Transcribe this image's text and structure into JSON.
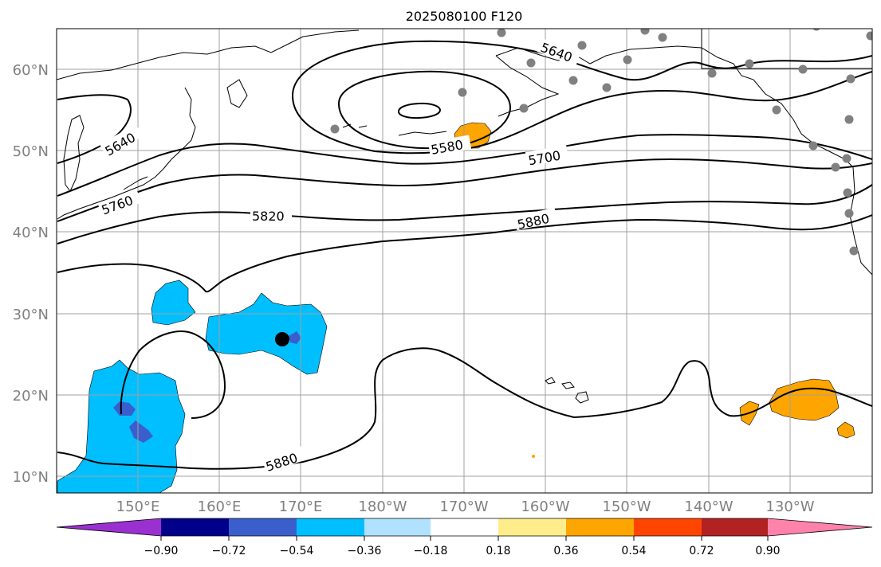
{
  "title": "2025080100 F120",
  "latitude_labels": [
    "60°N",
    "50°N",
    "40°N",
    "30°N",
    "20°N",
    "10°N"
  ],
  "longitude_labels": [
    "150°E",
    "160°E",
    "170°E",
    "180°W",
    "170°W",
    "160°W",
    "150°W",
    "140°W",
    "130°W"
  ],
  "contour_labels": [
    "5640",
    "5640",
    "5580",
    "5700",
    "5760",
    "5820",
    "5880",
    "5880"
  ],
  "colorbar": {
    "ticks": [
      "−0.90",
      "−0.72",
      "−0.54",
      "−0.36",
      "−0.18",
      "0.18",
      "0.36",
      "0.54",
      "0.72",
      "0.90"
    ],
    "colors": [
      "#9b30d0",
      "#00008b",
      "#3a5fcd",
      "#00bfff",
      "#b0e2ff",
      "#ffffff",
      "#ffec8b",
      "#ffa500",
      "#ff4500",
      "#b22222",
      "#ff82ab"
    ]
  },
  "anomaly_colors": {
    "light_blue": "#00bfff",
    "mid_blue": "#3a5fcd",
    "orange": "#ffa500"
  },
  "markers": {
    "station_color": "#808080",
    "storm_center_color": "#000000"
  }
}
